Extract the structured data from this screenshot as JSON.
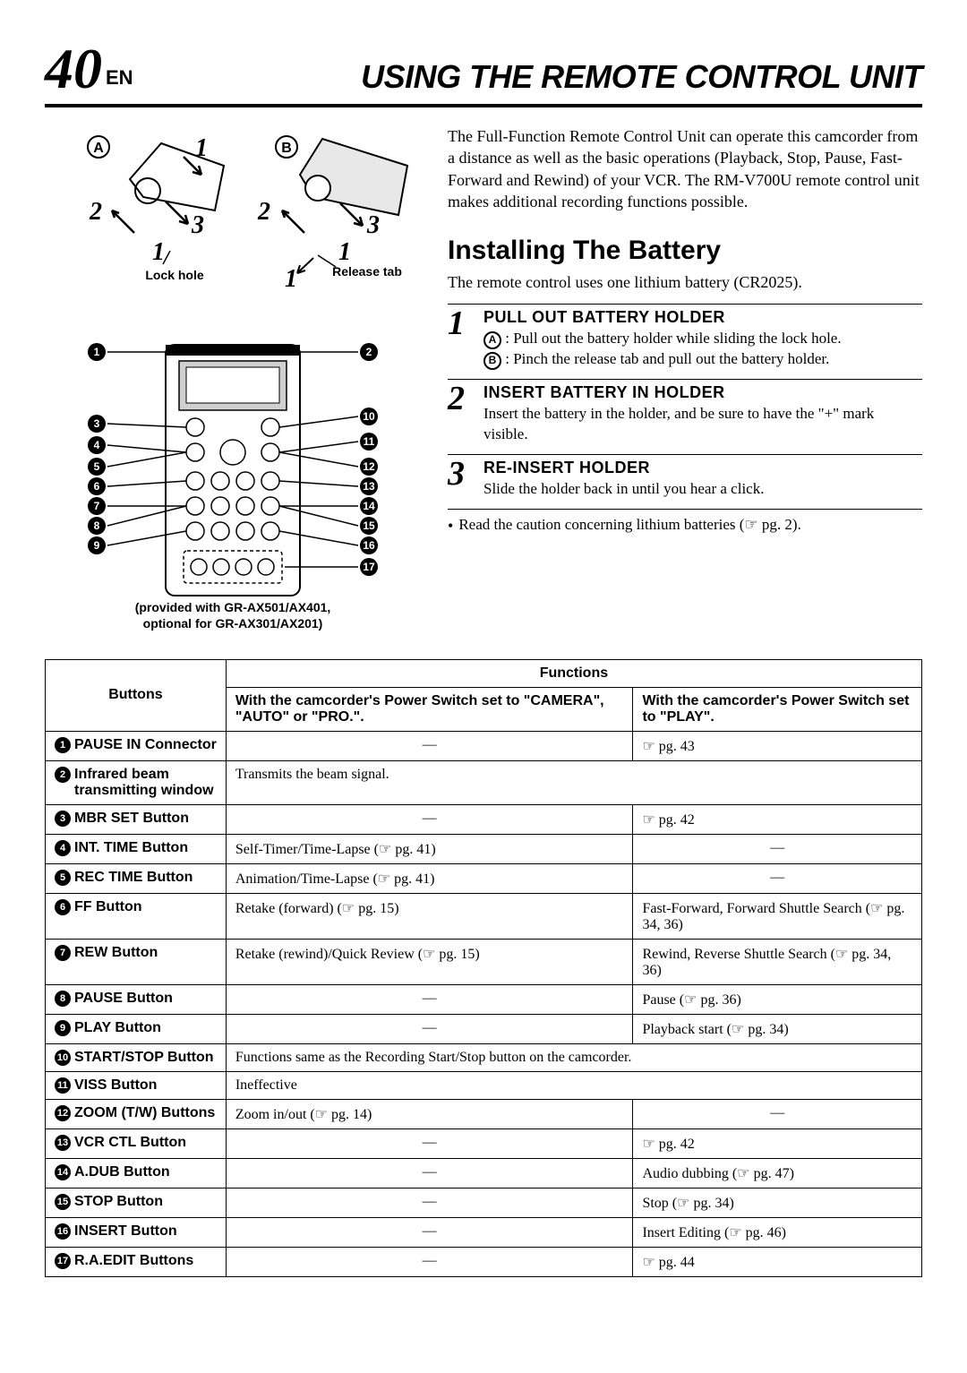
{
  "page": {
    "number": "40",
    "lang": "EN",
    "title": "USING THE REMOTE CONTROL UNIT"
  },
  "diagram": {
    "labelA": "A",
    "labelB": "B",
    "lockHole": "Lock hole",
    "releaseTab": "Release tab",
    "nums": [
      "1",
      "2",
      "3"
    ],
    "remoteModel": "RM-V700U",
    "remoteNote1": "(provided with GR-AX501/AX401,",
    "remoteNote2": "optional for GR-AX301/AX201)"
  },
  "intro": "The Full-Function Remote Control Unit can operate this camcorder from a distance as well as the basic operations (Playback, Stop, Pause, Fast-Forward and Rewind) of your VCR. The RM-V700U remote control unit makes additional recording functions possible.",
  "install": {
    "title": "Installing The Battery",
    "sub": "The remote control uses one lithium battery (CR2025)."
  },
  "steps": [
    {
      "num": "1",
      "title": "PULL OUT BATTERY HOLDER",
      "lineA_label": "A",
      "lineA": ": Pull out the battery holder while sliding the lock hole.",
      "lineB_label": "B",
      "lineB": ": Pinch the release tab and pull out the battery holder."
    },
    {
      "num": "2",
      "title": "INSERT BATTERY IN HOLDER",
      "text": "Insert the battery in the holder, and be sure to have the \"+\" mark visible."
    },
    {
      "num": "3",
      "title": "RE-INSERT HOLDER",
      "text": "Slide the holder back in until you hear a click."
    }
  ],
  "note": "Read the caution concerning lithium batteries (☞ pg. 2).",
  "table": {
    "head_buttons": "Buttons",
    "head_functions": "Functions",
    "head_camera": "With the camcorder's Power Switch set to \"CAMERA\", \"AUTO\" or \"PRO.\".",
    "head_play": "With the camcorder's Power Switch set to \"PLAY\".",
    "rows": [
      {
        "n": "1",
        "btn": "PAUSE IN Connector",
        "camera": "—",
        "play": "☞ pg. 43"
      },
      {
        "n": "2",
        "btn": "Infrared beam transmitting window",
        "span": "Transmits the beam signal."
      },
      {
        "n": "3",
        "btn": "MBR SET Button",
        "camera": "—",
        "play": "☞ pg. 42"
      },
      {
        "n": "4",
        "btn": "INT. TIME Button",
        "camera": "Self-Timer/Time-Lapse (☞ pg. 41)",
        "play": "—"
      },
      {
        "n": "5",
        "btn": "REC TIME Button",
        "camera": "Animation/Time-Lapse (☞ pg. 41)",
        "play": "—"
      },
      {
        "n": "6",
        "btn": "FF Button",
        "camera": "Retake (forward) (☞ pg. 15)",
        "play": "Fast-Forward, Forward Shuttle Search (☞ pg. 34, 36)"
      },
      {
        "n": "7",
        "btn": "REW Button",
        "camera": "Retake (rewind)/Quick Review (☞ pg. 15)",
        "play": "Rewind, Reverse Shuttle Search (☞ pg. 34, 36)"
      },
      {
        "n": "8",
        "btn": "PAUSE Button",
        "camera": "—",
        "play": "Pause (☞ pg. 36)"
      },
      {
        "n": "9",
        "btn": "PLAY Button",
        "camera": "—",
        "play": "Playback start (☞ pg. 34)"
      },
      {
        "n": "10",
        "btn": "START/STOP Button",
        "span": "Functions same as the Recording Start/Stop button on the camcorder."
      },
      {
        "n": "11",
        "btn": "VISS Button",
        "span": "Ineffective"
      },
      {
        "n": "12",
        "btn": "ZOOM (T/W) Buttons",
        "camera": "Zoom in/out (☞ pg. 14)",
        "play": "—"
      },
      {
        "n": "13",
        "btn": "VCR CTL Button",
        "camera": "—",
        "play": "☞ pg. 42"
      },
      {
        "n": "14",
        "btn": "A.DUB Button",
        "camera": "—",
        "play": "Audio dubbing (☞ pg. 47)"
      },
      {
        "n": "15",
        "btn": "STOP Button",
        "camera": "—",
        "play": "Stop (☞ pg. 34)"
      },
      {
        "n": "16",
        "btn": "INSERT Button",
        "camera": "—",
        "play": "Insert Editing (☞ pg. 46)"
      },
      {
        "n": "17",
        "btn": "R.A.EDIT Buttons",
        "camera": "—",
        "play": "☞ pg. 44"
      }
    ]
  }
}
